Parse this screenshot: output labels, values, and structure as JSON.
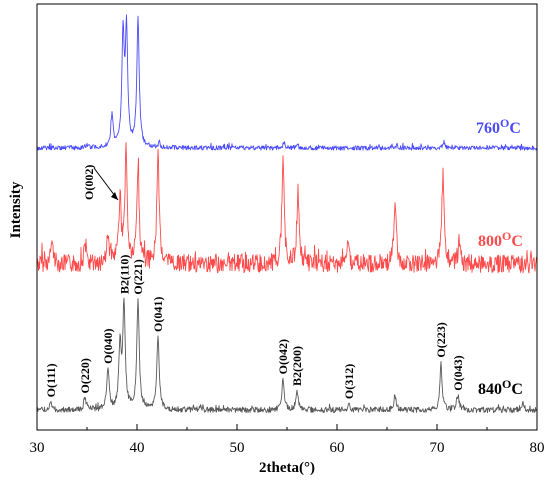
{
  "chart_data": {
    "type": "line",
    "title": "",
    "xlabel": "2theta(°)",
    "ylabel": "Intensity",
    "xlim": [
      30,
      80
    ],
    "xticks": [
      30,
      40,
      50,
      60,
      70,
      80
    ],
    "xtick_labels": [
      "30",
      "40",
      "50",
      "60",
      "70",
      "80"
    ],
    "grid": false,
    "y_units": "arbitrary (stacked, offset)",
    "series": [
      {
        "name": "760ºC",
        "label_main": "760",
        "label_sup": "O",
        "label_end": "C",
        "color": "#4b4bff",
        "baseline": 148,
        "noise": 2.2,
        "seed": 3,
        "peaks": [
          {
            "x": 35.0,
            "h": 3
          },
          {
            "x": 37.5,
            "h": 32
          },
          {
            "x": 38.6,
            "h": 110
          },
          {
            "x": 38.95,
            "h": 114
          },
          {
            "x": 40.1,
            "h": 130
          },
          {
            "x": 42.2,
            "h": 4
          },
          {
            "x": 54.7,
            "h": 5
          },
          {
            "x": 56.0,
            "h": 3
          },
          {
            "x": 66.0,
            "h": 3
          },
          {
            "x": 70.7,
            "h": 6
          }
        ]
      },
      {
        "name": "800ºC",
        "label_main": "800",
        "label_sup": "O",
        "label_end": "C",
        "color": "#ff4b4b",
        "baseline": 264,
        "noise": 9,
        "seed": 7,
        "peaks": [
          {
            "x": 31.5,
            "h": 22
          },
          {
            "x": 34.8,
            "h": 14
          },
          {
            "x": 37.1,
            "h": 28
          },
          {
            "x": 38.3,
            "h": 64
          },
          {
            "x": 38.9,
            "h": 110
          },
          {
            "x": 40.1,
            "h": 97
          },
          {
            "x": 42.1,
            "h": 112
          },
          {
            "x": 54.6,
            "h": 101
          },
          {
            "x": 56.1,
            "h": 72
          },
          {
            "x": 61.1,
            "h": 22
          },
          {
            "x": 65.8,
            "h": 61
          },
          {
            "x": 70.6,
            "h": 92
          },
          {
            "x": 72.2,
            "h": 20
          }
        ]
      },
      {
        "name": "840ºC",
        "label_main": "840",
        "label_sup": "O",
        "label_end": "C",
        "color": "#595959",
        "baseline": 410,
        "noise": 2.8,
        "seed": 11,
        "peaks": [
          {
            "x": 31.4,
            "h": 8
          },
          {
            "x": 34.8,
            "h": 12
          },
          {
            "x": 37.1,
            "h": 40
          },
          {
            "x": 38.3,
            "h": 64
          },
          {
            "x": 38.7,
            "h": 106
          },
          {
            "x": 40.1,
            "h": 111
          },
          {
            "x": 42.1,
            "h": 75
          },
          {
            "x": 46.3,
            "h": 4
          },
          {
            "x": 54.6,
            "h": 30
          },
          {
            "x": 56.0,
            "h": 20
          },
          {
            "x": 61.2,
            "h": 6
          },
          {
            "x": 65.8,
            "h": 14
          },
          {
            "x": 70.4,
            "h": 44
          },
          {
            "x": 72.1,
            "h": 14
          },
          {
            "x": 78.6,
            "h": 6
          }
        ]
      }
    ],
    "annotations": [
      {
        "text": "O(002)",
        "series": 1,
        "x": 38.3,
        "arrow": true
      },
      {
        "text": "O(111)",
        "series": 2,
        "x": 31.4
      },
      {
        "text": "O(220)",
        "series": 2,
        "x": 34.8
      },
      {
        "text": "O(040)",
        "series": 2,
        "x": 37.1
      },
      {
        "text": "B2(110)",
        "series": 2,
        "x": 38.75
      },
      {
        "text": "O(221)",
        "series": 2,
        "x": 40.1
      },
      {
        "text": "O(041)",
        "series": 2,
        "x": 42.1
      },
      {
        "text": "O(042)",
        "series": 2,
        "x": 54.6
      },
      {
        "text": "B2(200)",
        "series": 2,
        "x": 56.0
      },
      {
        "text": "O(312)",
        "series": 2,
        "x": 61.2
      },
      {
        "text": "O(223)",
        "series": 2,
        "x": 70.4
      },
      {
        "text": "O(043)",
        "series": 2,
        "x": 72.1
      }
    ]
  }
}
